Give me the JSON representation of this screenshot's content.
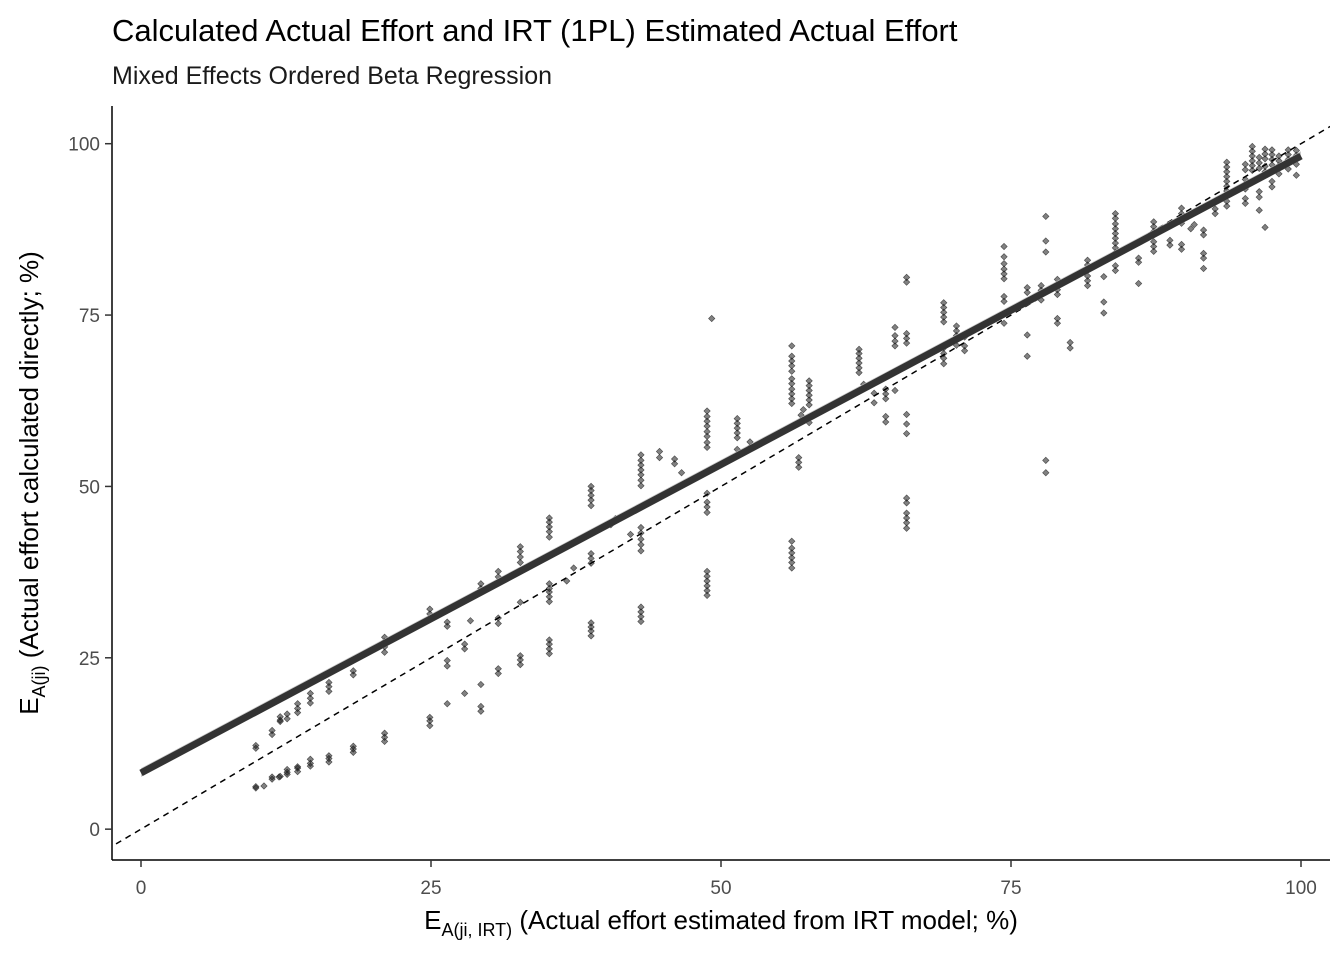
{
  "chart_data": {
    "type": "scatter",
    "title": "Calculated Actual Effort and IRT (1PL) Estimated Actual Effort",
    "subtitle": "Mixed Effects Ordered Beta Regression",
    "xlabel": {
      "main": "E",
      "sub": "A(ji, IRT)",
      "rest": " (Actual effort estimated from IRT model; %)"
    },
    "ylabel": {
      "main": "E",
      "sub": "A(ji)",
      "rest": " (Actual effort calculated directly; %)"
    },
    "xlim": [
      -2.5,
      102.5
    ],
    "ylim": [
      -4.5,
      105.5
    ],
    "x_ticks": [
      0,
      25,
      50,
      75,
      100
    ],
    "y_ticks": [
      0,
      25,
      50,
      75,
      100
    ],
    "x_tick_labels": [
      "0",
      "25",
      "50",
      "75",
      "100"
    ],
    "y_tick_labels": [
      "0",
      "25",
      "50",
      "75",
      "100"
    ],
    "grid": false,
    "reference_line": {
      "type": "identity",
      "style": "dashed",
      "slope": 1,
      "intercept": 0
    },
    "fit_line": {
      "x": [
        0,
        100
      ],
      "y": [
        8.2,
        98.2
      ],
      "ribbon_lower": [
        7.6,
        97.6
      ],
      "ribbon_upper": [
        8.9,
        98.9
      ],
      "color": "#333333",
      "ribbon_color": "#bdbdbd"
    },
    "point_color": "#1a1a1a",
    "point_opacity": 0.55,
    "points": [
      [
        9.9,
        12.2
      ],
      [
        9.9,
        11.8
      ],
      [
        9.9,
        6.0
      ],
      [
        9.9,
        6.2
      ],
      [
        10.6,
        6.3
      ],
      [
        11.3,
        13.8
      ],
      [
        11.3,
        14.4
      ],
      [
        11.3,
        7.3
      ],
      [
        11.3,
        7.6
      ],
      [
        11.9,
        7.6
      ],
      [
        12.0,
        15.7
      ],
      [
        12.0,
        16.4
      ],
      [
        12.0,
        15.9
      ],
      [
        12.0,
        7.7
      ],
      [
        12.6,
        16.8
      ],
      [
        12.6,
        16.1
      ],
      [
        12.6,
        8.0
      ],
      [
        12.6,
        8.3
      ],
      [
        12.6,
        8.7
      ],
      [
        13.5,
        17.0
      ],
      [
        13.5,
        17.6
      ],
      [
        13.5,
        18.3
      ],
      [
        13.5,
        8.4
      ],
      [
        13.5,
        8.9
      ],
      [
        13.5,
        9.1
      ],
      [
        14.6,
        18.4
      ],
      [
        14.6,
        19.1
      ],
      [
        14.6,
        19.8
      ],
      [
        14.6,
        9.2
      ],
      [
        14.6,
        9.6
      ],
      [
        14.6,
        10.2
      ],
      [
        16.2,
        20.1
      ],
      [
        16.2,
        20.8
      ],
      [
        16.2,
        21.4
      ],
      [
        16.2,
        9.8
      ],
      [
        16.2,
        10.3
      ],
      [
        16.2,
        10.7
      ],
      [
        18.3,
        22.5
      ],
      [
        18.3,
        23.1
      ],
      [
        18.3,
        11.2
      ],
      [
        18.3,
        11.7
      ],
      [
        18.3,
        12.1
      ],
      [
        21.0,
        25.8
      ],
      [
        21.0,
        26.6
      ],
      [
        21.0,
        27.4
      ],
      [
        21.0,
        28.0
      ],
      [
        21.0,
        12.8
      ],
      [
        21.0,
        13.4
      ],
      [
        21.0,
        14.0
      ],
      [
        24.9,
        30.6
      ],
      [
        24.9,
        31.4
      ],
      [
        24.9,
        32.1
      ],
      [
        24.9,
        15.1
      ],
      [
        24.9,
        15.8
      ],
      [
        24.9,
        16.3
      ],
      [
        26.4,
        29.6
      ],
      [
        26.4,
        30.2
      ],
      [
        26.4,
        23.8
      ],
      [
        26.4,
        24.6
      ],
      [
        26.4,
        18.3
      ],
      [
        27.9,
        26.3
      ],
      [
        27.9,
        27.0
      ],
      [
        27.9,
        19.8
      ],
      [
        28.4,
        30.4
      ],
      [
        29.3,
        35.1
      ],
      [
        29.3,
        35.8
      ],
      [
        29.3,
        21.1
      ],
      [
        29.3,
        17.2
      ],
      [
        29.3,
        17.9
      ],
      [
        30.8,
        36.8
      ],
      [
        30.8,
        37.6
      ],
      [
        30.8,
        30.8
      ],
      [
        30.8,
        30.0
      ],
      [
        30.8,
        22.7
      ],
      [
        30.8,
        23.4
      ],
      [
        32.7,
        38.9
      ],
      [
        32.7,
        39.7
      ],
      [
        32.7,
        40.5
      ],
      [
        32.7,
        41.2
      ],
      [
        32.7,
        33.1
      ],
      [
        32.7,
        24.0
      ],
      [
        32.7,
        24.7
      ],
      [
        32.7,
        25.3
      ],
      [
        35.2,
        42.6
      ],
      [
        35.2,
        43.4
      ],
      [
        35.2,
        44.1
      ],
      [
        35.2,
        44.8
      ],
      [
        35.2,
        45.4
      ],
      [
        35.2,
        35.8
      ],
      [
        35.2,
        35.1
      ],
      [
        35.2,
        34.6
      ],
      [
        35.2,
        33.9
      ],
      [
        35.2,
        33.2
      ],
      [
        35.2,
        25.6
      ],
      [
        35.2,
        26.3
      ],
      [
        35.2,
        27.0
      ],
      [
        35.2,
        27.6
      ],
      [
        36.7,
        36.2
      ],
      [
        37.3,
        38.1
      ],
      [
        38.8,
        47.2
      ],
      [
        38.8,
        48.0
      ],
      [
        38.8,
        48.7
      ],
      [
        38.8,
        49.4
      ],
      [
        38.8,
        50.0
      ],
      [
        38.8,
        38.8
      ],
      [
        38.8,
        39.5
      ],
      [
        38.8,
        40.2
      ],
      [
        38.8,
        28.2
      ],
      [
        38.8,
        28.9
      ],
      [
        38.8,
        29.5
      ],
      [
        38.8,
        30.1
      ],
      [
        40.5,
        44.4
      ],
      [
        40.9,
        45.3
      ],
      [
        42.2,
        43.0
      ],
      [
        43.1,
        50.1
      ],
      [
        43.1,
        50.9
      ],
      [
        43.1,
        51.7
      ],
      [
        43.1,
        52.4
      ],
      [
        43.1,
        53.1
      ],
      [
        43.1,
        53.8
      ],
      [
        43.1,
        54.6
      ],
      [
        43.1,
        44.0
      ],
      [
        43.1,
        43.2
      ],
      [
        43.1,
        42.3
      ],
      [
        43.1,
        41.5
      ],
      [
        43.1,
        40.6
      ],
      [
        43.1,
        31.0
      ],
      [
        43.1,
        31.7
      ],
      [
        43.1,
        32.4
      ],
      [
        43.1,
        30.3
      ],
      [
        44.7,
        55.1
      ],
      [
        44.7,
        54.2
      ],
      [
        46.0,
        54.0
      ],
      [
        46.0,
        53.3
      ],
      [
        46.6,
        52.0
      ],
      [
        48.8,
        57.3
      ],
      [
        48.8,
        58.0
      ],
      [
        48.8,
        58.8
      ],
      [
        48.8,
        59.5
      ],
      [
        48.8,
        60.2
      ],
      [
        48.8,
        61.0
      ],
      [
        48.8,
        56.4
      ],
      [
        48.8,
        55.7
      ],
      [
        48.8,
        47.0
      ],
      [
        48.8,
        46.2
      ],
      [
        48.8,
        47.7
      ],
      [
        48.8,
        49.0
      ],
      [
        48.8,
        34.1
      ],
      [
        48.8,
        34.8
      ],
      [
        48.8,
        35.5
      ],
      [
        48.8,
        36.2
      ],
      [
        48.8,
        36.9
      ],
      [
        48.8,
        37.6
      ],
      [
        49.2,
        74.5
      ],
      [
        51.4,
        57.1
      ],
      [
        51.4,
        57.8
      ],
      [
        51.4,
        58.5
      ],
      [
        51.4,
        59.2
      ],
      [
        51.4,
        59.9
      ],
      [
        51.4,
        55.4
      ],
      [
        52.5,
        56.5
      ],
      [
        52.5,
        55.7
      ],
      [
        56.1,
        62.1
      ],
      [
        56.1,
        62.8
      ],
      [
        56.1,
        63.5
      ],
      [
        56.1,
        64.2
      ],
      [
        56.1,
        65.0
      ],
      [
        56.1,
        65.7
      ],
      [
        56.1,
        66.8
      ],
      [
        56.1,
        67.6
      ],
      [
        56.1,
        68.3
      ],
      [
        56.1,
        69.0
      ],
      [
        56.1,
        70.5
      ],
      [
        56.1,
        38.1
      ],
      [
        56.1,
        38.9
      ],
      [
        56.1,
        39.6
      ],
      [
        56.1,
        40.3
      ],
      [
        56.1,
        41.0
      ],
      [
        56.1,
        42.0
      ],
      [
        56.7,
        52.8
      ],
      [
        56.7,
        53.5
      ],
      [
        56.7,
        54.2
      ],
      [
        56.9,
        60.4
      ],
      [
        57.1,
        61.2
      ],
      [
        57.6,
        61.9
      ],
      [
        57.6,
        62.6
      ],
      [
        57.6,
        63.3
      ],
      [
        57.6,
        64.0
      ],
      [
        57.6,
        64.7
      ],
      [
        57.6,
        65.4
      ],
      [
        57.6,
        60.0
      ],
      [
        57.6,
        59.3
      ],
      [
        61.9,
        66.6
      ],
      [
        61.9,
        67.3
      ],
      [
        61.9,
        68.0
      ],
      [
        61.9,
        68.7
      ],
      [
        61.9,
        69.4
      ],
      [
        61.9,
        70.0
      ],
      [
        62.3,
        64.9
      ],
      [
        63.2,
        63.6
      ],
      [
        63.2,
        62.2
      ],
      [
        64.2,
        62.8
      ],
      [
        64.2,
        63.5
      ],
      [
        64.2,
        64.2
      ],
      [
        64.2,
        60.2
      ],
      [
        64.2,
        59.4
      ],
      [
        65.0,
        70.5
      ],
      [
        65.0,
        71.2
      ],
      [
        65.0,
        72.0
      ],
      [
        65.0,
        73.2
      ],
      [
        65.0,
        64.0
      ],
      [
        66.0,
        70.9
      ],
      [
        66.0,
        71.6
      ],
      [
        66.0,
        72.3
      ],
      [
        66.0,
        79.8
      ],
      [
        66.0,
        80.5
      ],
      [
        66.0,
        43.9
      ],
      [
        66.0,
        44.7
      ],
      [
        66.0,
        45.4
      ],
      [
        66.0,
        46.1
      ],
      [
        66.0,
        47.6
      ],
      [
        66.0,
        48.3
      ],
      [
        66.0,
        60.5
      ],
      [
        66.0,
        59.1
      ],
      [
        66.0,
        57.7
      ],
      [
        69.2,
        74.0
      ],
      [
        69.2,
        74.7
      ],
      [
        69.2,
        75.4
      ],
      [
        69.2,
        76.1
      ],
      [
        69.2,
        76.8
      ],
      [
        69.2,
        70.2
      ],
      [
        69.2,
        69.4
      ],
      [
        69.2,
        68.7
      ],
      [
        69.2,
        67.9
      ],
      [
        70.3,
        70.6
      ],
      [
        70.3,
        71.3
      ],
      [
        70.3,
        72.0
      ],
      [
        70.3,
        72.7
      ],
      [
        70.3,
        73.4
      ],
      [
        71.0,
        70.5
      ],
      [
        71.0,
        69.8
      ],
      [
        71.0,
        71.8
      ],
      [
        74.4,
        80.3
      ],
      [
        74.4,
        81.0
      ],
      [
        74.4,
        81.7
      ],
      [
        74.4,
        82.5
      ],
      [
        74.4,
        83.5
      ],
      [
        74.4,
        85.0
      ],
      [
        74.4,
        77.0
      ],
      [
        74.4,
        77.7
      ],
      [
        74.4,
        73.8
      ],
      [
        76.4,
        78.3
      ],
      [
        76.4,
        79.0
      ],
      [
        76.4,
        72.1
      ],
      [
        76.4,
        69.0
      ],
      [
        77.6,
        77.2
      ],
      [
        77.6,
        77.9
      ],
      [
        77.6,
        78.6
      ],
      [
        77.6,
        79.3
      ],
      [
        78.0,
        53.8
      ],
      [
        78.0,
        52.0
      ],
      [
        78.0,
        84.2
      ],
      [
        78.0,
        85.8
      ],
      [
        78.0,
        89.4
      ],
      [
        79.0,
        78.0
      ],
      [
        79.0,
        78.7
      ],
      [
        79.0,
        79.4
      ],
      [
        79.0,
        80.2
      ],
      [
        79.0,
        74.5
      ],
      [
        79.0,
        73.8
      ],
      [
        80.1,
        70.2
      ],
      [
        80.1,
        71.0
      ],
      [
        81.6,
        79.3
      ],
      [
        81.6,
        80.0
      ],
      [
        81.6,
        80.7
      ],
      [
        81.6,
        81.5
      ],
      [
        81.6,
        82.3
      ],
      [
        81.6,
        83.0
      ],
      [
        83.0,
        76.9
      ],
      [
        83.0,
        75.3
      ],
      [
        83.0,
        80.6
      ],
      [
        84.0,
        84.1
      ],
      [
        84.0,
        84.8
      ],
      [
        84.0,
        85.5
      ],
      [
        84.0,
        86.2
      ],
      [
        84.0,
        86.9
      ],
      [
        84.0,
        87.6
      ],
      [
        84.0,
        88.3
      ],
      [
        84.0,
        89.1
      ],
      [
        84.0,
        89.8
      ],
      [
        84.0,
        82.2
      ],
      [
        84.0,
        81.5
      ],
      [
        86.0,
        82.7
      ],
      [
        86.0,
        83.3
      ],
      [
        86.0,
        79.6
      ],
      [
        87.3,
        87.2
      ],
      [
        87.3,
        87.9
      ],
      [
        87.3,
        88.6
      ],
      [
        87.3,
        85.7
      ],
      [
        87.3,
        85.0
      ],
      [
        87.3,
        84.3
      ],
      [
        88.7,
        85.2
      ],
      [
        88.7,
        85.9
      ],
      [
        88.7,
        88.1
      ],
      [
        89.7,
        88.4
      ],
      [
        89.7,
        89.1
      ],
      [
        89.7,
        89.8
      ],
      [
        89.7,
        90.6
      ],
      [
        89.7,
        85.3
      ],
      [
        89.7,
        84.6
      ],
      [
        90.5,
        87.6
      ],
      [
        90.8,
        88.2
      ],
      [
        91.6,
        87.4
      ],
      [
        91.6,
        86.7
      ],
      [
        91.6,
        84.0
      ],
      [
        91.6,
        83.3
      ],
      [
        91.6,
        81.8
      ],
      [
        92.6,
        89.8
      ],
      [
        92.6,
        90.5
      ],
      [
        93.6,
        93.1
      ],
      [
        93.6,
        93.8
      ],
      [
        93.6,
        94.5
      ],
      [
        93.6,
        95.2
      ],
      [
        93.6,
        95.9
      ],
      [
        93.6,
        96.6
      ],
      [
        93.6,
        97.3
      ],
      [
        93.6,
        91.6
      ],
      [
        93.6,
        90.9
      ],
      [
        95.2,
        93.4
      ],
      [
        95.2,
        94.1
      ],
      [
        95.2,
        94.8
      ],
      [
        95.2,
        96.2
      ],
      [
        95.2,
        97.0
      ],
      [
        95.2,
        92.0
      ],
      [
        95.2,
        91.3
      ],
      [
        95.8,
        96.1
      ],
      [
        95.8,
        96.8
      ],
      [
        95.8,
        97.5
      ],
      [
        95.8,
        98.2
      ],
      [
        95.8,
        98.9
      ],
      [
        95.8,
        99.6
      ],
      [
        96.4,
        97.2
      ],
      [
        96.4,
        98.0
      ],
      [
        96.4,
        96.4
      ],
      [
        96.4,
        93.0
      ],
      [
        96.4,
        92.2
      ],
      [
        96.4,
        90.3
      ],
      [
        96.9,
        97.8
      ],
      [
        96.9,
        98.5
      ],
      [
        96.9,
        99.2
      ],
      [
        96.9,
        96.7
      ],
      [
        96.9,
        95.9
      ],
      [
        96.9,
        87.8
      ],
      [
        97.5,
        98.4
      ],
      [
        97.5,
        99.1
      ],
      [
        97.5,
        97.7
      ],
      [
        97.5,
        96.9
      ],
      [
        97.5,
        94.5
      ],
      [
        97.5,
        93.7
      ],
      [
        98.1,
        97.5
      ],
      [
        98.1,
        98.2
      ],
      [
        98.1,
        96.8
      ],
      [
        98.1,
        95.6
      ],
      [
        98.9,
        98.4
      ],
      [
        98.9,
        97.7
      ],
      [
        98.9,
        99.1
      ],
      [
        98.9,
        96.3
      ],
      [
        99.6,
        99.0
      ],
      [
        99.6,
        98.3
      ],
      [
        99.6,
        97.0
      ],
      [
        99.6,
        95.4
      ]
    ]
  }
}
